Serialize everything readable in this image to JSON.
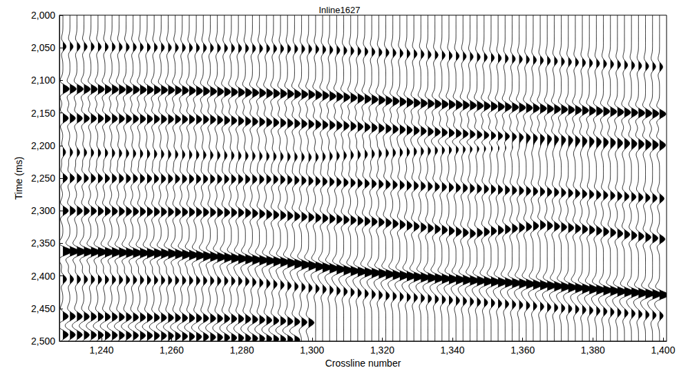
{
  "chart_data": {
    "type": "wiggle",
    "title": "Inline1627",
    "x_label": "Crossline number",
    "y_label": "Time (ms)",
    "xlim": [
      1228,
      1401
    ],
    "ylim": [
      2000,
      2500
    ],
    "xticks": [
      1240,
      1260,
      1280,
      1300,
      1320,
      1340,
      1360,
      1380,
      1400
    ],
    "yticks": [
      2000,
      2050,
      2100,
      2150,
      2200,
      2250,
      2300,
      2350,
      2400,
      2450,
      2500
    ],
    "color": "#000000",
    "grid": false,
    "traces": [
      1229,
      1231,
      1233,
      1235,
      1237,
      1239,
      1241,
      1243,
      1245,
      1247,
      1249,
      1251,
      1253,
      1255,
      1257,
      1259,
      1261,
      1263,
      1265,
      1267,
      1269,
      1271,
      1273,
      1275,
      1277,
      1279,
      1281,
      1283,
      1285,
      1287,
      1289,
      1291,
      1293,
      1295,
      1297,
      1299,
      1301,
      1303,
      1305,
      1307,
      1309,
      1311,
      1313,
      1315,
      1317,
      1319,
      1321,
      1323,
      1325,
      1327,
      1329,
      1331,
      1333,
      1335,
      1337,
      1339,
      1341,
      1343,
      1345,
      1347,
      1349,
      1351,
      1353,
      1355,
      1357,
      1359,
      1361,
      1363,
      1365,
      1367,
      1369,
      1371,
      1373,
      1375,
      1377,
      1379,
      1381,
      1383,
      1385,
      1387,
      1389,
      1391,
      1393,
      1395,
      1397,
      1399
    ],
    "horizons": [
      {
        "x": [
          1228,
          1300,
          1350,
          1401
        ],
        "t": [
          2048,
          2052,
          2065,
          2080
        ],
        "amplitude": 0.35
      },
      {
        "x": [
          1228,
          1260,
          1300,
          1330,
          1360,
          1401
        ],
        "t": [
          2113,
          2115,
          2122,
          2135,
          2142,
          2152
        ],
        "amplitude": 0.7
      },
      {
        "x": [
          1228,
          1270,
          1310,
          1350,
          1401
        ],
        "t": [
          2158,
          2160,
          2170,
          2185,
          2198
        ],
        "amplitude": 0.6
      },
      {
        "x": [
          1228,
          1300,
          1360,
          1401
        ],
        "t": [
          2210,
          2218,
          2200,
          2205
        ],
        "amplitude": 0.3
      },
      {
        "x": [
          1228,
          1290,
          1330,
          1370,
          1401
        ],
        "t": [
          2250,
          2252,
          2262,
          2272,
          2282
        ],
        "amplitude": 0.5
      },
      {
        "x": [
          1228,
          1280,
          1320,
          1345,
          1365,
          1380,
          1401
        ],
        "t": [
          2300,
          2303,
          2318,
          2335,
          2322,
          2330,
          2345
        ],
        "amplitude": 0.6
      },
      {
        "x": [
          1228,
          1260,
          1290,
          1310,
          1330,
          1360,
          1401
        ],
        "t": [
          2362,
          2366,
          2378,
          2392,
          2402,
          2412,
          2430
        ],
        "amplitude": 1.0
      },
      {
        "x": [
          1228,
          1280,
          1320,
          1360,
          1401
        ],
        "t": [
          2405,
          2408,
          2430,
          2445,
          2462
        ],
        "amplitude": 0.4
      },
      {
        "x": [
          1228,
          1280,
          1300
        ],
        "t": [
          2462,
          2466,
          2472
        ],
        "amplitude": 0.6
      },
      {
        "x": [
          1228,
          1260,
          1295
        ],
        "t": [
          2490,
          2492,
          2498
        ],
        "amplitude": 0.6
      }
    ]
  }
}
